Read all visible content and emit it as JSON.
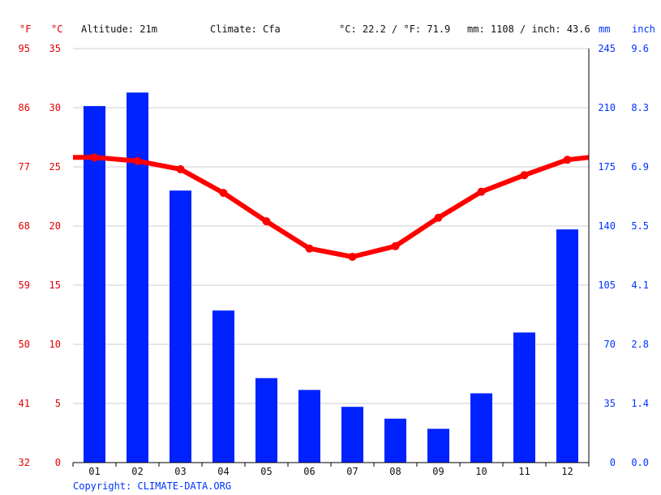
{
  "header": {
    "altitude": "Altitude: 21m",
    "climate": "Climate: Cfa",
    "temp_avg": "°C: 22.2 / °F: 71.9",
    "precip_total": "mm: 1108 / inch: 43.6"
  },
  "axis_units": {
    "f": "°F",
    "c": "°C",
    "mm": "mm",
    "inch": "inch"
  },
  "copyright": "Copyright: CLIMATE-DATA.ORG",
  "colors": {
    "temperature": "#ff0000",
    "precipitation": "#0022ff",
    "grid": "#cccccc",
    "left_axis": "#e00000",
    "right_axis": "#0033ff"
  },
  "chart_data": {
    "type": "bar",
    "categories": [
      "01",
      "02",
      "03",
      "04",
      "05",
      "06",
      "07",
      "08",
      "09",
      "10",
      "11",
      "12"
    ],
    "series": [
      {
        "type": "bar",
        "axis": "mm",
        "values": [
          211,
          219,
          161,
          90,
          50,
          43,
          33,
          26,
          20,
          41,
          77,
          138
        ]
      },
      {
        "type": "line",
        "axis": "°C",
        "values": [
          25.8,
          25.5,
          24.8,
          22.8,
          20.4,
          18.1,
          17.4,
          18.3,
          20.7,
          22.9,
          24.3,
          25.6
        ]
      }
    ],
    "line_edges": {
      "left": 25.8,
      "right": 25.8
    },
    "y_ticks_f": [
      "95",
      "86",
      "77",
      "68",
      "59",
      "50",
      "41",
      "32"
    ],
    "y_ticks_c": [
      "35",
      "30",
      "25",
      "20",
      "15",
      "10",
      "5",
      "0"
    ],
    "y_ticks_mm": [
      "245",
      "210",
      "175",
      "140",
      "105",
      "70",
      "35",
      "0"
    ],
    "y_ticks_inch": [
      "9.6",
      "8.3",
      "6.9",
      "5.5",
      "4.1",
      "2.8",
      "1.4",
      "0.0"
    ],
    "ylim_c": [
      0,
      35
    ],
    "ylim_mm": [
      0,
      245
    ],
    "grid": true
  }
}
